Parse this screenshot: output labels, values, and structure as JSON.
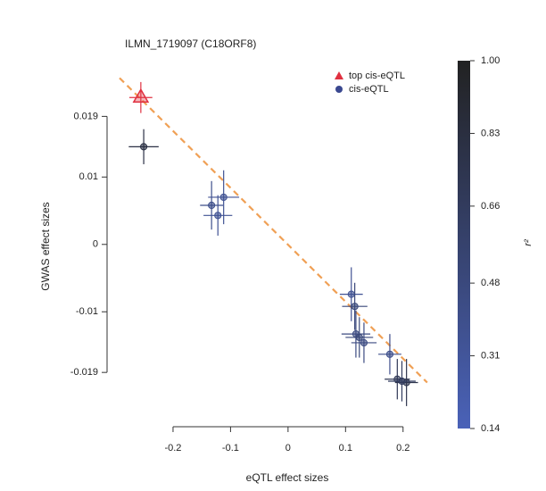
{
  "chart_data": {
    "type": "scatter",
    "title": "ILMN_1719097 (C18ORF8)",
    "xlabel": "eQTL effect sizes",
    "ylabel": "GWAS effect sizes",
    "xlim": [
      -0.3,
      0.25
    ],
    "ylim": [
      -0.026,
      0.027
    ],
    "xticks": [
      -0.2,
      -0.1,
      0,
      0.1,
      0.2
    ],
    "yticks": [
      -0.019,
      -0.01,
      0,
      0.01,
      0.019
    ],
    "legend": "upper right",
    "fit_line": {
      "color": "#f0a055",
      "x": [
        -0.293,
        0.242
      ],
      "y": [
        0.0247,
        -0.0205
      ]
    },
    "series": [
      {
        "name": "top cis-eQTL",
        "color": "#e03040",
        "marker": "triangle",
        "x": [
          -0.256
        ],
        "values": [
          0.0218
        ],
        "x_err": [
          0.02
        ],
        "y_err": [
          0.0023
        ]
      },
      {
        "name": "cis-eQTL",
        "color": "#3a4890",
        "marker": "circle",
        "x": [
          -0.251,
          -0.133,
          -0.112,
          -0.122,
          0.11,
          0.116,
          0.118,
          0.124,
          0.132,
          0.177,
          0.19,
          0.206,
          0.198
        ],
        "values": [
          0.0145,
          0.0058,
          0.007,
          0.0043,
          -0.0074,
          -0.0092,
          -0.0133,
          -0.0138,
          -0.0146,
          -0.0163,
          -0.02,
          -0.0205,
          -0.0203
        ],
        "x_err": [
          0.026,
          0.02,
          0.027,
          0.025,
          0.02,
          0.022,
          0.025,
          0.024,
          0.022,
          0.02,
          0.022,
          0.02,
          0.024
        ],
        "y_err": [
          0.0026,
          0.0036,
          0.004,
          0.003,
          0.004,
          0.0035,
          0.0035,
          0.003,
          0.003,
          0.003,
          0.003,
          0.0035,
          0.003
        ],
        "r2": [
          0.8,
          0.4,
          0.35,
          0.35,
          0.35,
          0.5,
          0.45,
          0.5,
          0.45,
          0.4,
          0.7,
          0.75,
          0.65
        ]
      }
    ],
    "colorbar": {
      "label": "r²",
      "lim": [
        0.14,
        1
      ],
      "colors": [
        "#4a62b8",
        "#222222"
      ],
      "ticks": [
        {
          "value": 1,
          "label": "1.00"
        },
        0.83,
        0.66,
        0.48,
        0.31,
        0.14
      ]
    }
  }
}
